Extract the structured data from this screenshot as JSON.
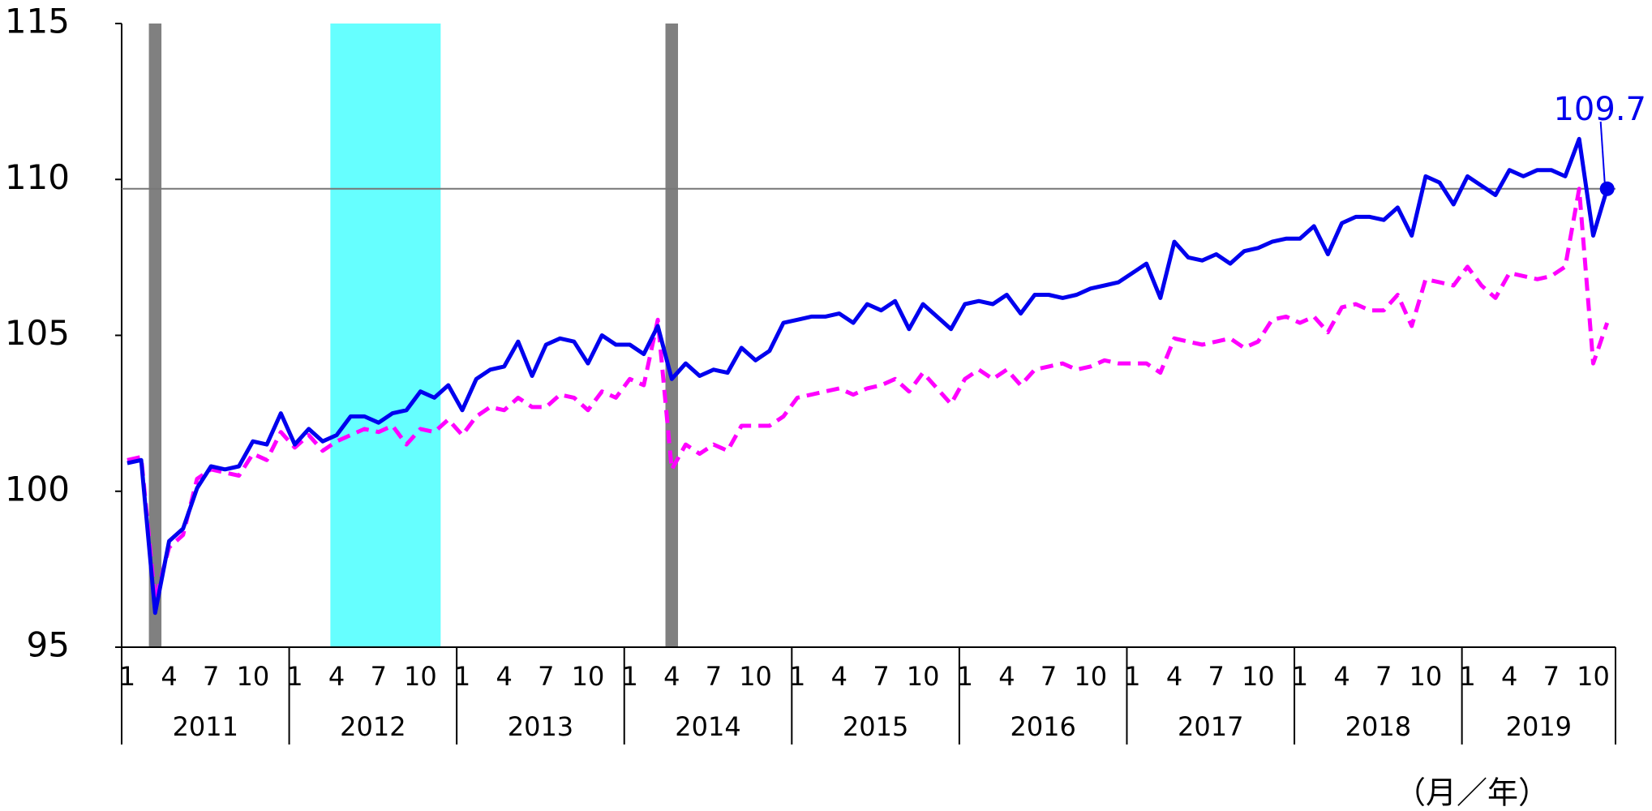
{
  "chart_data": {
    "type": "line",
    "categories": [
      "1",
      null,
      null,
      "4",
      null,
      null,
      "7",
      null,
      null,
      "10",
      null,
      null,
      "1",
      null,
      null,
      "4",
      null,
      null,
      "7",
      null,
      null,
      "10",
      null,
      null,
      "1",
      null,
      null,
      "4",
      null,
      null,
      "7",
      null,
      null,
      "10",
      null,
      null,
      "1",
      null,
      null,
      "4",
      null,
      null,
      "7",
      null,
      null,
      "10",
      null,
      null,
      "1",
      null,
      null,
      "4",
      null,
      null,
      "7",
      null,
      null,
      "10",
      null,
      null,
      "1",
      null,
      null,
      "4",
      null,
      null,
      "7",
      null,
      null,
      "10",
      null,
      null,
      "1",
      null,
      null,
      "4",
      null,
      null,
      "7",
      null,
      null,
      "10",
      null,
      null,
      "1",
      null,
      null,
      "4",
      null,
      null,
      "7",
      null,
      null,
      "10",
      null,
      null,
      "1",
      null,
      null,
      "4",
      null,
      null,
      "7",
      null,
      null,
      "10",
      null
    ],
    "years": [
      "2011",
      "2012",
      "2013",
      "2014",
      "2015",
      "2016",
      "2017",
      "2018",
      "2019"
    ],
    "series": [
      {
        "color": "#0000ee",
        "values": [
          100.9,
          101.0,
          96.1,
          98.4,
          98.8,
          100.1,
          100.8,
          100.7,
          100.8,
          101.6,
          101.5,
          102.5,
          101.5,
          102.0,
          101.6,
          101.8,
          102.4,
          102.4,
          102.2,
          102.5,
          102.6,
          103.2,
          103.0,
          103.4,
          102.6,
          103.6,
          103.9,
          104.0,
          104.8,
          103.7,
          104.7,
          104.9,
          104.8,
          104.1,
          105.0,
          104.7,
          104.7,
          104.4,
          105.3,
          103.6,
          104.1,
          103.7,
          103.9,
          103.8,
          104.6,
          104.2,
          104.5,
          105.4,
          105.5,
          105.6,
          105.6,
          105.7,
          105.4,
          106.0,
          105.8,
          106.1,
          105.2,
          106.0,
          105.6,
          105.2,
          106.0,
          106.1,
          106.0,
          106.3,
          105.7,
          106.3,
          106.3,
          106.2,
          106.3,
          106.5,
          106.6,
          106.7,
          107.0,
          107.3,
          106.2,
          108.0,
          107.5,
          107.4,
          107.6,
          107.3,
          107.7,
          107.8,
          108.0,
          108.1,
          108.1,
          108.5,
          107.6,
          108.6,
          108.8,
          108.8,
          108.7,
          109.1,
          108.2,
          110.1,
          109.9,
          109.2,
          110.1,
          109.8,
          109.5,
          110.3,
          110.1,
          110.3,
          110.3,
          110.1,
          111.3,
          108.2,
          109.7
        ]
      },
      {
        "color": "#ff00ff",
        "dashed": true,
        "values": [
          101.0,
          101.1,
          96.5,
          98.2,
          98.6,
          100.4,
          100.7,
          100.6,
          100.5,
          101.2,
          101.0,
          101.9,
          101.4,
          101.8,
          101.3,
          101.6,
          101.8,
          102.0,
          101.9,
          102.1,
          101.5,
          102.0,
          101.9,
          102.3,
          101.8,
          102.4,
          102.7,
          102.6,
          103.0,
          102.7,
          102.7,
          103.1,
          103.0,
          102.6,
          103.2,
          103.0,
          103.6,
          103.4,
          105.5,
          100.7,
          101.5,
          101.2,
          101.5,
          101.3,
          102.1,
          102.1,
          102.1,
          102.4,
          103.0,
          103.1,
          103.2,
          103.3,
          103.1,
          103.3,
          103.4,
          103.6,
          103.2,
          103.8,
          103.3,
          102.8,
          103.6,
          103.9,
          103.6,
          103.9,
          103.4,
          103.9,
          104.0,
          104.1,
          103.9,
          104.0,
          104.2,
          104.1,
          104.1,
          104.1,
          103.8,
          104.9,
          104.8,
          104.7,
          104.8,
          104.9,
          104.6,
          104.8,
          105.5,
          105.6,
          105.4,
          105.6,
          105.1,
          105.9,
          106.0,
          105.8,
          105.8,
          106.3,
          105.3,
          106.8,
          106.7,
          106.6,
          107.2,
          106.6,
          106.2,
          107.0,
          106.9,
          106.8,
          106.9,
          107.2,
          109.7,
          104.1,
          105.4
        ]
      }
    ],
    "ylim": [
      95,
      115
    ],
    "yticks": [
      95,
      100,
      105,
      110,
      115
    ],
    "hline": 109.7,
    "annotation": "109.7",
    "shaded": [
      {
        "from": "2011-03",
        "to": "2011-03",
        "color": "#808080"
      },
      {
        "from": "2012-04",
        "to": "2012-11",
        "color": "#66ffff"
      },
      {
        "from": "2014-04",
        "to": "2014-04",
        "color": "#808080"
      }
    ],
    "x_label": "（月／年）"
  }
}
